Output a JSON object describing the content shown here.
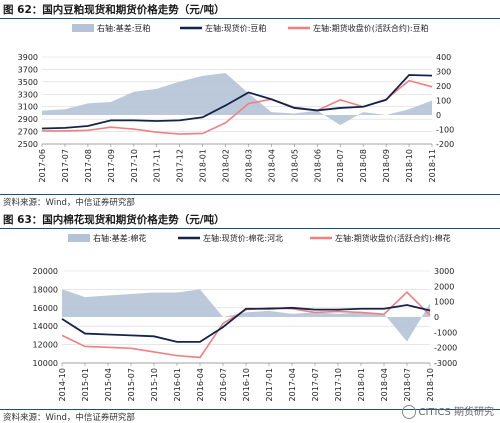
{
  "fig1": {
    "title": "图 62：国内豆粕现货和期货价格走势（元/吨）",
    "source": "资料来源：Wind，中信证券研究部"
  },
  "fig2": {
    "title": "图 63：国内棉花现货和期货价格走势（元/吨）",
    "source": "资料来源：Wind，中信证券研究部"
  },
  "watermark": "CITICS 期货研究",
  "colors": {
    "basis": "#b4c3d6",
    "spot": "#14234b",
    "futures": "#f08080",
    "grid": "#d9d9d9"
  },
  "chart_data": [
    {
      "type": "line",
      "title": "国内豆粕现货和期货价格走势（元/吨）",
      "x": [
        "2017-06",
        "2017-07",
        "2017-08",
        "2017-09",
        "2017-10",
        "2017-11",
        "2017-12",
        "2018-01",
        "2018-02",
        "2018-03",
        "2018-04",
        "2018-05",
        "2018-06",
        "2018-07",
        "2018-08",
        "2018-09",
        "2018-10",
        "2018-11"
      ],
      "ylim_left": [
        2500,
        3900
      ],
      "yticks_left": [
        2500,
        2700,
        2900,
        3100,
        3300,
        3500,
        3700,
        3900
      ],
      "ylim_right": [
        -200,
        400
      ],
      "yticks_right": [
        -200,
        -100,
        0,
        100,
        200,
        300,
        400
      ],
      "legend_placement": "top",
      "grid": true,
      "series": [
        {
          "name": "右轴:基差:豆粕",
          "kind": "area",
          "axis": "right",
          "values": [
            30,
            40,
            80,
            90,
            160,
            180,
            230,
            270,
            290,
            150,
            20,
            10,
            30,
            -70,
            20,
            0,
            40,
            100
          ]
        },
        {
          "name": "左轴:现货价:豆粕",
          "kind": "line",
          "axis": "left",
          "values": [
            2750,
            2760,
            2790,
            2880,
            2880,
            2870,
            2880,
            2930,
            3120,
            3330,
            3220,
            3080,
            3040,
            3080,
            3100,
            3210,
            3610,
            3600
          ]
        },
        {
          "name": "左轴:期货收盘价(活跃合约):豆粕",
          "kind": "line",
          "axis": "left",
          "values": [
            2710,
            2710,
            2720,
            2770,
            2740,
            2690,
            2660,
            2670,
            2840,
            3150,
            3220,
            3090,
            3040,
            3210,
            3100,
            3220,
            3520,
            3420
          ]
        }
      ]
    },
    {
      "type": "line",
      "title": "国内棉花现货和期货价格走势（元/吨）",
      "x": [
        "2014-10",
        "2015-01",
        "2015-04",
        "2015-07",
        "2015-10",
        "2016-01",
        "2016-04",
        "2016-07",
        "2016-10",
        "2017-01",
        "2017-04",
        "2017-07",
        "2017-10",
        "2018-01",
        "2018-04",
        "2018-07",
        "2018-10"
      ],
      "ylim_left": [
        10000,
        20000
      ],
      "yticks_left": [
        10000,
        12000,
        14000,
        16000,
        18000,
        20000
      ],
      "ylim_right": [
        -3000,
        3000
      ],
      "yticks_right": [
        -3000,
        -2000,
        -1000,
        0,
        1000,
        2000,
        3000
      ],
      "legend_placement": "top",
      "grid": true,
      "series": [
        {
          "name": "右轴:基差:棉花",
          "kind": "area",
          "axis": "right",
          "values": [
            1800,
            1300,
            1400,
            1500,
            1600,
            1600,
            1800,
            0,
            300,
            400,
            200,
            300,
            200,
            300,
            200,
            -1600,
            900
          ]
        },
        {
          "name": "左轴:现货价:棉花:河北",
          "kind": "line",
          "axis": "left",
          "values": [
            14800,
            13200,
            13100,
            13000,
            12900,
            12300,
            12300,
            13900,
            15900,
            15900,
            16000,
            15800,
            15800,
            15900,
            15900,
            16300,
            15700
          ]
        },
        {
          "name": "左轴:期货收盘价(活跃合约):棉花",
          "kind": "line",
          "axis": "left",
          "values": [
            13000,
            11800,
            11700,
            11600,
            11200,
            10800,
            10600,
            14300,
            15800,
            16000,
            15900,
            15500,
            15600,
            15500,
            15300,
            17700,
            15200
          ]
        }
      ]
    }
  ]
}
